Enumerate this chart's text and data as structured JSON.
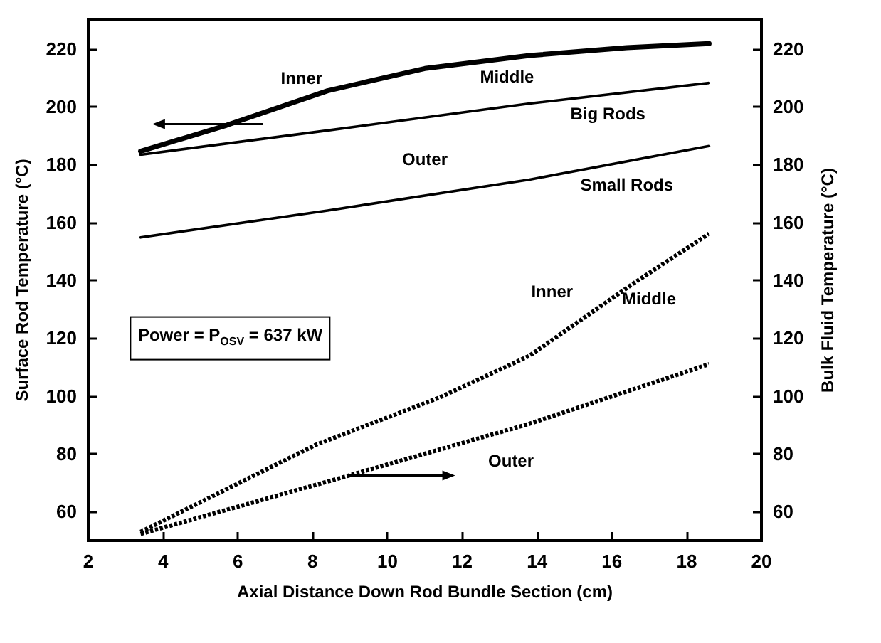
{
  "chart_data": {
    "type": "line",
    "xlabel": "Axial Distance Down Rod Bundle Section (cm)",
    "ylabel": "Surface Rod Temperature (°C)",
    "y2label": "Bulk Fluid Temperature (°C)",
    "xlim": [
      2,
      20
    ],
    "xticks": [
      2,
      4,
      6,
      8,
      10,
      12,
      14,
      16,
      18,
      20
    ],
    "ylim": [
      50,
      230
    ],
    "yticks": [
      60,
      80,
      100,
      120,
      140,
      160,
      180,
      200,
      220
    ],
    "y2lim": [
      50,
      230
    ],
    "y2ticks": [
      60,
      80,
      100,
      120,
      140,
      160,
      180,
      200,
      220
    ],
    "grid": false,
    "marker": "none",
    "series": [
      {
        "color": "#000000",
        "line_style": "solid",
        "x": [
          3.4,
          5.7,
          8.4,
          11.0,
          13.8,
          16.4,
          18.6
        ],
        "values": [
          184.6,
          193.6,
          205.5,
          213.2,
          217.7,
          220.4,
          221.8
        ]
      },
      {
        "color": "#000000",
        "line_style": "solid",
        "x": [
          3.4,
          8.4,
          13.8,
          18.6
        ],
        "values": [
          183.4,
          191.8,
          201.1,
          208.2
        ]
      },
      {
        "color": "#000000",
        "line_style": "solid",
        "x": [
          3.4,
          8.4,
          13.8,
          18.6
        ],
        "values": [
          154.8,
          164.1,
          174.8,
          186.4
        ]
      },
      {
        "color": "#000000",
        "line_style": "dashed",
        "x": [
          3.4,
          8.1,
          11.4,
          13.8,
          16.6,
          18.6
        ],
        "values": [
          53.0,
          83.2,
          99.5,
          113.9,
          139.1,
          156.1
        ]
      },
      {
        "color": "#000000",
        "line_style": "dashed",
        "x": [
          3.4,
          8.7,
          13.8,
          18.6
        ],
        "values": [
          52.3,
          71.5,
          90.4,
          111.0
        ]
      }
    ],
    "annotations": [
      "Inner",
      "Middle",
      "Big Rods",
      "Outer",
      "Small Rods",
      "Inner",
      "Middle",
      "Outer",
      "Power = P$_{OSV}$ = 637 kW"
    ]
  }
}
